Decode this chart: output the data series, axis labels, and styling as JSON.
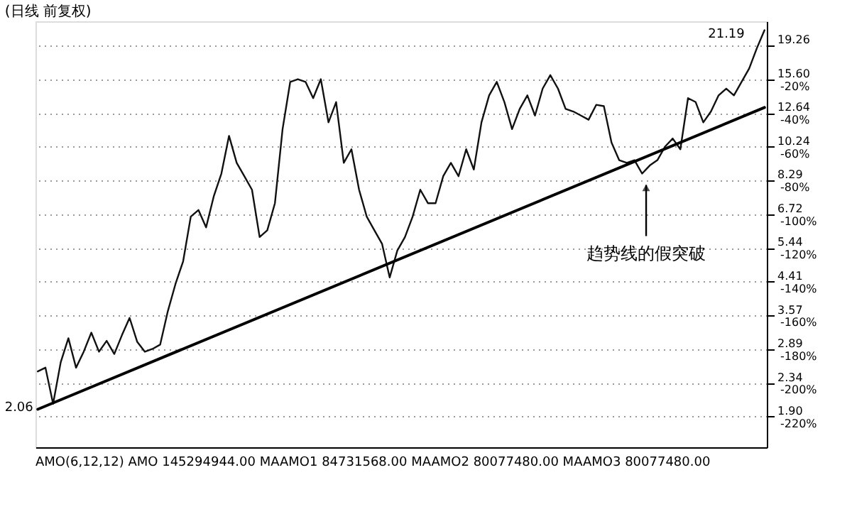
{
  "chart_data": {
    "type": "line",
    "title": "(日线 前复权)",
    "log": "y",
    "grid": "y",
    "tick_labels": "y",
    "marker": "none",
    "line_style": "solid",
    "categories": [
      null,
      null,
      null,
      null,
      null,
      null,
      null,
      null,
      null,
      null,
      null,
      null,
      null,
      null,
      null,
      null,
      null,
      null,
      null,
      null,
      null,
      null,
      null,
      null,
      null,
      null,
      null,
      null,
      null,
      null,
      null,
      null,
      null,
      null,
      null,
      null,
      null,
      null,
      null,
      null,
      null,
      null,
      null,
      null,
      null,
      null,
      null,
      null,
      null,
      null,
      null,
      null,
      null,
      null,
      null,
      null,
      null,
      null,
      null,
      null,
      null,
      null,
      null,
      null,
      null,
      null,
      null,
      null,
      null,
      null,
      null,
      null,
      null,
      null,
      null,
      null,
      null,
      null,
      null,
      null,
      null,
      null,
      null,
      null,
      null,
      null,
      null,
      null,
      null,
      null,
      null,
      null,
      null,
      null,
      null,
      null
    ],
    "ylim": [
      1.57,
      22.4
    ],
    "yticks": [
      {
        "value": 1.9,
        "label": "1.90"
      },
      {
        "value": 2.34,
        "label": "2.34"
      },
      {
        "value": 2.89,
        "label": "2.89"
      },
      {
        "value": 3.57,
        "label": "3.57"
      },
      {
        "value": 4.41,
        "label": "4.41"
      },
      {
        "value": 5.44,
        "label": "5.44"
      },
      {
        "value": 6.72,
        "label": "6.72"
      },
      {
        "value": 8.29,
        "label": "8.29"
      },
      {
        "value": 10.24,
        "label": "10.24"
      },
      {
        "value": 12.64,
        "label": "12.64"
      },
      {
        "value": 15.6,
        "label": "15.60"
      },
      19.26
    ],
    "y2lim": [
      -238.1,
      14.4
    ],
    "y2ticks": [
      {
        "value": -220,
        "label": "-220%"
      },
      {
        "value": -200,
        "label": "-200%"
      },
      {
        "value": -180,
        "label": "-180%"
      },
      {
        "value": -160,
        "label": "-160%"
      },
      {
        "value": -140,
        "label": "-140%"
      },
      {
        "value": -120,
        "label": "-120%"
      },
      {
        "value": -100,
        "label": "-100%"
      },
      {
        "value": -80,
        "label": "-80%"
      },
      {
        "value": -60,
        "label": "-60%"
      },
      {
        "value": -40,
        "label": "-40%"
      },
      {
        "value": -20,
        "label": "-20%"
      }
    ],
    "series": [
      {
        "color": "#111111",
        "values": [
          2.52,
          2.58,
          2.06,
          2.67,
          3.1,
          2.58,
          2.85,
          3.21,
          2.85,
          3.05,
          2.81,
          3.16,
          3.52,
          3.03,
          2.85,
          2.9,
          2.98,
          3.67,
          4.35,
          5.01,
          6.62,
          6.9,
          6.19,
          7.51,
          8.66,
          10.96,
          9.26,
          8.52,
          7.83,
          5.83,
          6.08,
          7.2,
          11.43,
          15.35,
          15.61,
          15.35,
          13.87,
          15.61,
          11.92,
          13.53,
          9.26,
          10.08,
          7.83,
          6.62,
          6.08,
          5.59,
          4.53,
          5.36,
          5.83,
          6.62,
          7.83,
          7.2,
          7.2,
          8.52,
          9.26,
          8.52,
          10.08,
          8.88,
          11.92,
          14.11,
          15.35,
          13.53,
          11.43,
          12.97,
          14.11,
          12.44,
          14.72,
          16.01,
          14.72,
          12.97,
          12.76,
          12.44,
          12.12,
          13.3,
          13.19,
          10.51,
          9.42,
          9.26,
          9.42,
          8.66,
          9.11,
          9.42,
          10.25,
          10.78,
          10.08,
          13.87,
          13.53,
          11.92,
          12.76,
          14.11,
          14.72,
          14.11,
          15.35,
          16.69,
          18.94,
          21.19
        ],
        "value_labels": [
          null,
          null,
          "2.06",
          null,
          null,
          null,
          null,
          null,
          null,
          null,
          null,
          null,
          null,
          null,
          null,
          null,
          null,
          null,
          null,
          null,
          null,
          null,
          null,
          null,
          null,
          null,
          null,
          null,
          null,
          null,
          null,
          null,
          null,
          null,
          null,
          null,
          null,
          null,
          null,
          null,
          null,
          null,
          null,
          null,
          null,
          null,
          null,
          null,
          null,
          null,
          null,
          null,
          null,
          null,
          null,
          null,
          null,
          null,
          null,
          null,
          null,
          null,
          null,
          null,
          null,
          null,
          null,
          null,
          null,
          null,
          null,
          null,
          null,
          null,
          null,
          null,
          null,
          null,
          null,
          null,
          null,
          null,
          null,
          null,
          null,
          null,
          null,
          null,
          null,
          null,
          null,
          null,
          null,
          null,
          null,
          "21.19"
        ]
      },
      {
        "color": "#000000",
        "values": [
          1.99,
          null,
          null,
          null,
          null,
          null,
          null,
          null,
          null,
          null,
          null,
          null,
          null,
          null,
          null,
          null,
          null,
          null,
          null,
          null,
          null,
          null,
          null,
          null,
          null,
          null,
          null,
          null,
          null,
          null,
          null,
          null,
          null,
          null,
          null,
          null,
          null,
          null,
          null,
          null,
          null,
          null,
          null,
          null,
          null,
          null,
          null,
          null,
          null,
          null,
          null,
          null,
          null,
          null,
          null,
          null,
          null,
          null,
          null,
          null,
          null,
          null,
          null,
          null,
          null,
          null,
          null,
          null,
          null,
          null,
          null,
          null,
          null,
          null,
          null,
          null,
          null,
          null,
          null,
          null,
          null,
          null,
          null,
          null,
          null,
          null,
          null,
          null,
          null,
          null,
          null,
          null,
          null,
          null,
          null,
          13.08
        ]
      }
    ],
    "annotations": [
      {
        "text": "趋势线的假突破",
        "y": 8.66
      },
      "AMO(6,12,12) AMO 145294944.00 MAAMO1 84731568.00 MAAMO2 80077480.00 MAAMO3 80077480.00"
    ]
  }
}
